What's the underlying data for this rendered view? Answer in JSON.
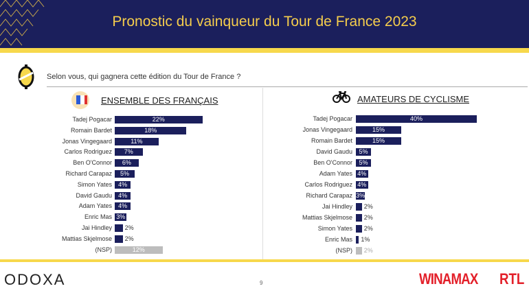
{
  "header": {
    "title": "Pronostic du vainqueur du Tour de France 2023"
  },
  "question": "Selon vous, qui gagnera cette édition du Tour de France ?",
  "colors": {
    "navy": "#1b1f5c",
    "yellow": "#f7d84c",
    "grey": "#bdbdbd",
    "red": "#e3202a"
  },
  "chart_data": [
    {
      "type": "bar",
      "orientation": "horizontal",
      "title": "ENSEMBLE DES FRANÇAIS",
      "unit": "%",
      "categories": [
        "Tadej Pogacar",
        "Romain Bardet",
        "Jonas Vingegaard",
        "Carlos Rodriguez",
        "Ben O'Connor",
        "Richard Carapaz",
        "Simon Yates",
        "David Gaudu",
        "Adam Yates",
        "Enric Mas",
        "Jai Hindley",
        "Mattias Skjelmose",
        "(NSP)"
      ],
      "values": [
        22,
        18,
        11,
        7,
        6,
        5,
        4,
        4,
        4,
        3,
        2,
        2,
        12
      ],
      "labels": [
        "22%",
        "18%",
        "11%",
        "7%",
        "6%",
        "5%",
        "4%",
        "4%",
        "4%",
        "3%",
        "2%",
        "2%",
        "12%"
      ]
    },
    {
      "type": "bar",
      "orientation": "horizontal",
      "title": "AMATEURS DE CYCLISME",
      "unit": "%",
      "categories": [
        "Tadej Pogacar",
        "Jonas Vingegaard",
        "Romain Bardet",
        "David Gaudu",
        "Ben O'Connor",
        "Adam Yates",
        "Carlos Rodriguez",
        "Richard Carapaz",
        "Jai Hindley",
        "Mattias Skjelmose",
        "Simon Yates",
        "Enric Mas",
        "(NSP)"
      ],
      "values": [
        40,
        15,
        15,
        5,
        5,
        4,
        4,
        3,
        2,
        2,
        2,
        1,
        2
      ],
      "labels": [
        "40%",
        "15%",
        "15%",
        "5%",
        "5%",
        "4%",
        "4%",
        "3%",
        "2%",
        "2%",
        "2%",
        "1%",
        "2%"
      ]
    }
  ],
  "footer": {
    "brand": "ODOXA",
    "page": "9",
    "partner1": "WINAMAX",
    "partner2": "RTL"
  }
}
